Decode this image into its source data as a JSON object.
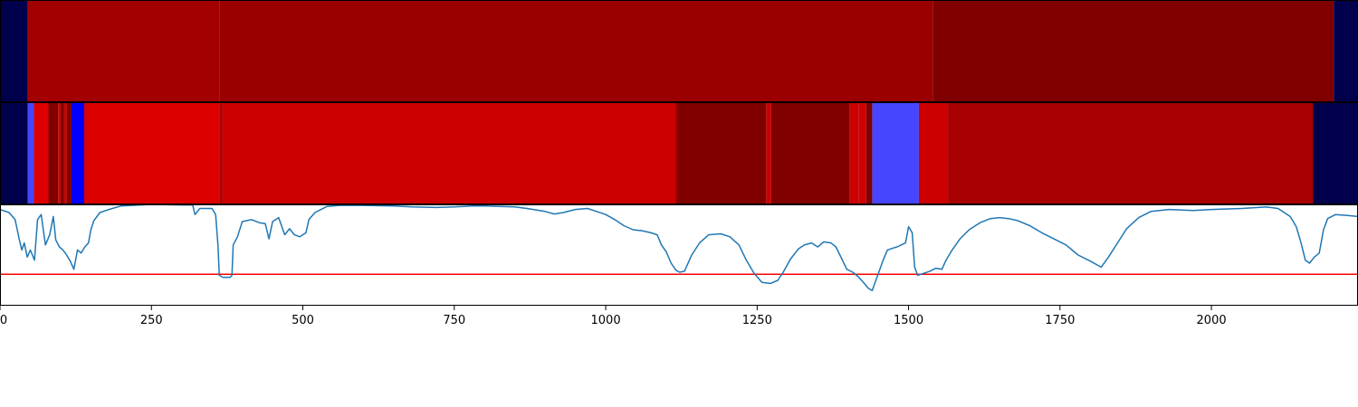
{
  "chart_data": {
    "type": "heatmap",
    "x_range": [
      0,
      2242
    ],
    "x_ticks": [
      {
        "value": 0,
        "label": "0"
      },
      {
        "value": 250,
        "label": "250"
      },
      {
        "value": 500,
        "label": "500"
      },
      {
        "value": 750,
        "label": "750"
      },
      {
        "value": 1000,
        "label": "1000"
      },
      {
        "value": 1250,
        "label": "1250"
      },
      {
        "value": 1500,
        "label": "1500"
      },
      {
        "value": 1750,
        "label": "1750"
      },
      {
        "value": 2000,
        "label": "2000"
      }
    ],
    "tracks": [
      {
        "type": "heatmap-strip",
        "segments": [
          {
            "start": 0,
            "end": 46,
            "color": "#00004c"
          },
          {
            "start": 46,
            "end": 362,
            "color": "#a30000"
          },
          {
            "start": 362,
            "end": 1540,
            "color": "#9a0000"
          },
          {
            "start": 1540,
            "end": 2202,
            "color": "#800000"
          },
          {
            "start": 2202,
            "end": 2242,
            "color": "#00004c"
          }
        ]
      },
      {
        "type": "heatmap-strip",
        "segments": [
          {
            "start": 0,
            "end": 46,
            "color": "#00004c"
          },
          {
            "start": 46,
            "end": 56,
            "color": "#4646ff"
          },
          {
            "start": 56,
            "end": 80,
            "color": "#dd0000"
          },
          {
            "start": 80,
            "end": 96,
            "color": "#800000"
          },
          {
            "start": 96,
            "end": 100,
            "color": "#cc0000"
          },
          {
            "start": 100,
            "end": 106,
            "color": "#800000"
          },
          {
            "start": 106,
            "end": 110,
            "color": "#cc0000"
          },
          {
            "start": 110,
            "end": 118,
            "color": "#800000"
          },
          {
            "start": 118,
            "end": 139,
            "color": "#0000ff"
          },
          {
            "start": 139,
            "end": 362,
            "color": "#dd0000"
          },
          {
            "start": 362,
            "end": 367,
            "color": "#a30000"
          },
          {
            "start": 367,
            "end": 1115,
            "color": "#cc0000"
          },
          {
            "start": 1115,
            "end": 1118,
            "color": "#a30000"
          },
          {
            "start": 1118,
            "end": 1265,
            "color": "#800000"
          },
          {
            "start": 1265,
            "end": 1273,
            "color": "#cc0000"
          },
          {
            "start": 1273,
            "end": 1403,
            "color": "#800000"
          },
          {
            "start": 1403,
            "end": 1418,
            "color": "#cc0000"
          },
          {
            "start": 1418,
            "end": 1430,
            "color": "#cc0000"
          },
          {
            "start": 1430,
            "end": 1440,
            "color": "#800000"
          },
          {
            "start": 1440,
            "end": 1517,
            "color": "#4646ff"
          },
          {
            "start": 1517,
            "end": 1565,
            "color": "#cc0000"
          },
          {
            "start": 1565,
            "end": 2168,
            "color": "#a80000"
          },
          {
            "start": 2168,
            "end": 2242,
            "color": "#00004c"
          }
        ]
      }
    ],
    "line_series": {
      "color": "#1f77b4",
      "y_range": [
        0,
        1
      ],
      "threshold": {
        "value": 0.31,
        "color": "#ff0000"
      },
      "points": [
        [
          0,
          0.95
        ],
        [
          15,
          0.92
        ],
        [
          25,
          0.85
        ],
        [
          32,
          0.65
        ],
        [
          36,
          0.55
        ],
        [
          40,
          0.62
        ],
        [
          45,
          0.48
        ],
        [
          50,
          0.55
        ],
        [
          57,
          0.45
        ],
        [
          62,
          0.85
        ],
        [
          68,
          0.9
        ],
        [
          75,
          0.6
        ],
        [
          82,
          0.7
        ],
        [
          88,
          0.88
        ],
        [
          92,
          0.65
        ],
        [
          98,
          0.58
        ],
        [
          104,
          0.55
        ],
        [
          110,
          0.5
        ],
        [
          116,
          0.44
        ],
        [
          122,
          0.36
        ],
        [
          128,
          0.55
        ],
        [
          134,
          0.52
        ],
        [
          140,
          0.58
        ],
        [
          146,
          0.62
        ],
        [
          150,
          0.75
        ],
        [
          155,
          0.84
        ],
        [
          165,
          0.92
        ],
        [
          180,
          0.95
        ],
        [
          200,
          0.985
        ],
        [
          250,
          1.0
        ],
        [
          300,
          0.995
        ],
        [
          318,
          0.995
        ],
        [
          322,
          0.9
        ],
        [
          330,
          0.96
        ],
        [
          350,
          0.96
        ],
        [
          356,
          0.9
        ],
        [
          360,
          0.58
        ],
        [
          362,
          0.3
        ],
        [
          368,
          0.28
        ],
        [
          380,
          0.28
        ],
        [
          383,
          0.3
        ],
        [
          385,
          0.6
        ],
        [
          392,
          0.68
        ],
        [
          400,
          0.83
        ],
        [
          415,
          0.85
        ],
        [
          428,
          0.82
        ],
        [
          438,
          0.81
        ],
        [
          444,
          0.66
        ],
        [
          450,
          0.83
        ],
        [
          460,
          0.87
        ],
        [
          470,
          0.7
        ],
        [
          478,
          0.76
        ],
        [
          486,
          0.7
        ],
        [
          495,
          0.68
        ],
        [
          505,
          0.72
        ],
        [
          510,
          0.85
        ],
        [
          520,
          0.92
        ],
        [
          540,
          0.98
        ],
        [
          560,
          0.99
        ],
        [
          600,
          0.99
        ],
        [
          650,
          0.985
        ],
        [
          680,
          0.975
        ],
        [
          720,
          0.97
        ],
        [
          750,
          0.975
        ],
        [
          780,
          0.985
        ],
        [
          800,
          0.985
        ],
        [
          850,
          0.975
        ],
        [
          870,
          0.96
        ],
        [
          900,
          0.93
        ],
        [
          915,
          0.905
        ],
        [
          930,
          0.92
        ],
        [
          950,
          0.95
        ],
        [
          970,
          0.96
        ],
        [
          985,
          0.93
        ],
        [
          1000,
          0.9
        ],
        [
          1015,
          0.85
        ],
        [
          1030,
          0.79
        ],
        [
          1045,
          0.75
        ],
        [
          1060,
          0.74
        ],
        [
          1075,
          0.72
        ],
        [
          1085,
          0.7
        ],
        [
          1092,
          0.6
        ],
        [
          1100,
          0.53
        ],
        [
          1108,
          0.42
        ],
        [
          1116,
          0.35
        ],
        [
          1122,
          0.33
        ],
        [
          1130,
          0.34
        ],
        [
          1142,
          0.5
        ],
        [
          1155,
          0.62
        ],
        [
          1170,
          0.7
        ],
        [
          1190,
          0.71
        ],
        [
          1205,
          0.68
        ],
        [
          1220,
          0.6
        ],
        [
          1232,
          0.45
        ],
        [
          1245,
          0.32
        ],
        [
          1258,
          0.23
        ],
        [
          1272,
          0.22
        ],
        [
          1284,
          0.25
        ],
        [
          1293,
          0.33
        ],
        [
          1305,
          0.46
        ],
        [
          1318,
          0.56
        ],
        [
          1328,
          0.6
        ],
        [
          1340,
          0.62
        ],
        [
          1350,
          0.58
        ],
        [
          1360,
          0.63
        ],
        [
          1372,
          0.62
        ],
        [
          1380,
          0.58
        ],
        [
          1390,
          0.46
        ],
        [
          1398,
          0.36
        ],
        [
          1408,
          0.33
        ],
        [
          1418,
          0.28
        ],
        [
          1427,
          0.22
        ],
        [
          1434,
          0.17
        ],
        [
          1440,
          0.15
        ],
        [
          1446,
          0.25
        ],
        [
          1452,
          0.35
        ],
        [
          1458,
          0.45
        ],
        [
          1465,
          0.55
        ],
        [
          1475,
          0.57
        ],
        [
          1481,
          0.58
        ],
        [
          1488,
          0.6
        ],
        [
          1495,
          0.62
        ],
        [
          1500,
          0.78
        ],
        [
          1506,
          0.72
        ],
        [
          1510,
          0.38
        ],
        [
          1515,
          0.3
        ],
        [
          1525,
          0.32
        ],
        [
          1535,
          0.34
        ],
        [
          1545,
          0.37
        ],
        [
          1555,
          0.36
        ],
        [
          1562,
          0.45
        ],
        [
          1572,
          0.55
        ],
        [
          1585,
          0.66
        ],
        [
          1600,
          0.75
        ],
        [
          1618,
          0.82
        ],
        [
          1635,
          0.86
        ],
        [
          1650,
          0.87
        ],
        [
          1665,
          0.86
        ],
        [
          1680,
          0.84
        ],
        [
          1700,
          0.79
        ],
        [
          1720,
          0.72
        ],
        [
          1740,
          0.66
        ],
        [
          1760,
          0.6
        ],
        [
          1780,
          0.5
        ],
        [
          1800,
          0.44
        ],
        [
          1818,
          0.38
        ],
        [
          1830,
          0.48
        ],
        [
          1845,
          0.62
        ],
        [
          1860,
          0.76
        ],
        [
          1880,
          0.87
        ],
        [
          1900,
          0.93
        ],
        [
          1930,
          0.95
        ],
        [
          1970,
          0.94
        ],
        [
          2000,
          0.95
        ],
        [
          2050,
          0.96
        ],
        [
          2090,
          0.975
        ],
        [
          2110,
          0.96
        ],
        [
          2130,
          0.88
        ],
        [
          2140,
          0.78
        ],
        [
          2148,
          0.62
        ],
        [
          2155,
          0.45
        ],
        [
          2162,
          0.42
        ],
        [
          2170,
          0.48
        ],
        [
          2178,
          0.52
        ],
        [
          2185,
          0.75
        ],
        [
          2192,
          0.86
        ],
        [
          2205,
          0.9
        ],
        [
          2225,
          0.89
        ],
        [
          2242,
          0.88
        ]
      ]
    }
  }
}
